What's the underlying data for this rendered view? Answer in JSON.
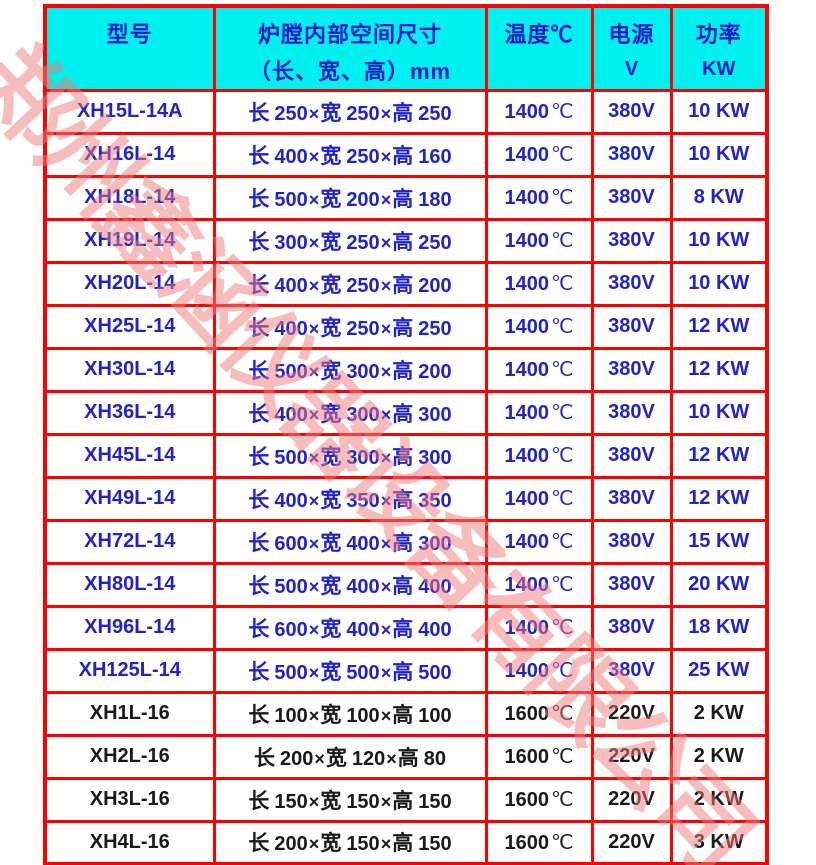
{
  "table": {
    "border_color": "#FF0000",
    "header_bg": "#00F0F0",
    "header_text_color": "#1A1AC8",
    "blue_text_color": "#2222CC",
    "black_text_color": "#1A1A1A",
    "headers": {
      "model": "型号",
      "dims_line1": "炉膛内部空间尺寸",
      "dims_line2": "（长、宽、高）mm",
      "temp": "温度℃",
      "voltage_line1": "电源",
      "voltage_line2": "V",
      "power_line1": "功率",
      "power_line2": "KW"
    },
    "dim_labels": [
      "长",
      "宽",
      "高"
    ],
    "times_symbol": "×",
    "temp_unit": "℃",
    "rows": [
      {
        "model": "XH15L-14A",
        "dims": [
          "250",
          "250",
          "250"
        ],
        "temp": "1400",
        "voltage": "380V",
        "power": "10 KW",
        "color": "blue"
      },
      {
        "model": "XH16L-14",
        "dims": [
          "400",
          "250",
          "160"
        ],
        "temp": "1400",
        "voltage": "380V",
        "power": "10 KW",
        "color": "blue"
      },
      {
        "model": "XH18L-14",
        "dims": [
          "500",
          "200",
          "180"
        ],
        "temp": "1400",
        "voltage": "380V",
        "power": "8 KW",
        "color": "blue"
      },
      {
        "model": "XH19L-14",
        "dims": [
          "300",
          "250",
          "250"
        ],
        "temp": "1400",
        "voltage": "380V",
        "power": "10 KW",
        "color": "blue"
      },
      {
        "model": "XH20L-14",
        "dims": [
          "400",
          "250",
          "200"
        ],
        "temp": "1400",
        "voltage": "380V",
        "power": "10 KW",
        "color": "blue"
      },
      {
        "model": "XH25L-14",
        "dims": [
          "400",
          "250",
          "250"
        ],
        "temp": "1400",
        "voltage": "380V",
        "power": "12 KW",
        "color": "blue"
      },
      {
        "model": "XH30L-14",
        "dims": [
          "500",
          "300",
          "200"
        ],
        "temp": "1400",
        "voltage": "380V",
        "power": "12 KW",
        "color": "blue"
      },
      {
        "model": "XH36L-14",
        "dims": [
          "400",
          "300",
          "300"
        ],
        "temp": "1400",
        "voltage": "380V",
        "power": "10 KW",
        "color": "blue"
      },
      {
        "model": "XH45L-14",
        "dims": [
          "500",
          "300",
          "300"
        ],
        "temp": "1400",
        "voltage": "380V",
        "power": "12 KW",
        "color": "blue"
      },
      {
        "model": "XH49L-14",
        "dims": [
          "400",
          "350",
          "350"
        ],
        "temp": "1400",
        "voltage": "380V",
        "power": "12 KW",
        "color": "blue"
      },
      {
        "model": "XH72L-14",
        "dims": [
          "600",
          "400",
          "300"
        ],
        "temp": "1400",
        "voltage": "380V",
        "power": "15 KW",
        "color": "blue"
      },
      {
        "model": "XH80L-14",
        "dims": [
          "500",
          "400",
          "400"
        ],
        "temp": "1400",
        "voltage": "380V",
        "power": "20 KW",
        "color": "blue"
      },
      {
        "model": "XH96L-14",
        "dims": [
          "600",
          "400",
          "400"
        ],
        "temp": "1400",
        "voltage": "380V",
        "power": "18 KW",
        "color": "blue"
      },
      {
        "model": "XH125L-14",
        "dims": [
          "500",
          "500",
          "500"
        ],
        "temp": "1400",
        "voltage": "380V",
        "power": "25 KW",
        "color": "blue"
      },
      {
        "model": "XH1L-16",
        "dims": [
          "100",
          "100",
          "100"
        ],
        "temp": "1600",
        "voltage": "220V",
        "power": "2 KW",
        "color": "black"
      },
      {
        "model": "XH2L-16",
        "dims": [
          "200",
          "120",
          "80"
        ],
        "temp": "1600",
        "voltage": "220V",
        "power": "2 KW",
        "color": "black"
      },
      {
        "model": "XH3L-16",
        "dims": [
          "150",
          "150",
          "150"
        ],
        "temp": "1600",
        "voltage": "220V",
        "power": "2 KW",
        "color": "black"
      },
      {
        "model": "XH4L-16",
        "dims": [
          "200",
          "150",
          "150"
        ],
        "temp": "1600",
        "voltage": "220V",
        "power": "3 KW",
        "color": "black"
      }
    ]
  },
  "watermark": {
    "text": "郑州鑫涵仪器设备有限公司",
    "color": "#F07A7A"
  }
}
